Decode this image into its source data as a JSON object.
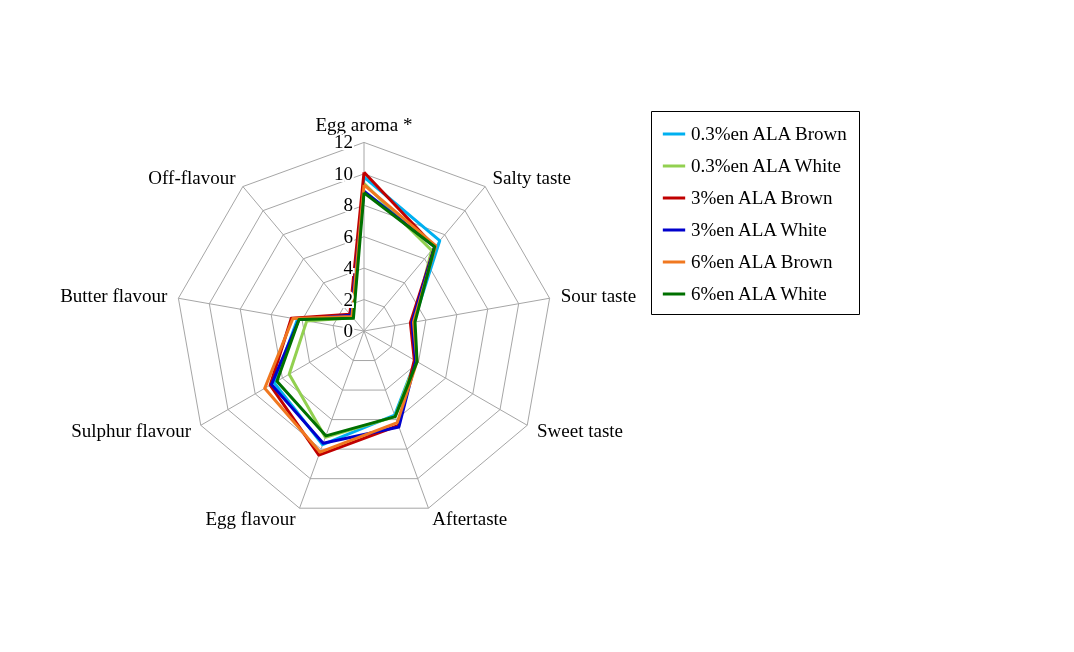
{
  "chart_data": {
    "type": "radar",
    "categories": [
      "Egg aroma *",
      "Salty taste",
      "Sour taste",
      "Sweet taste",
      "Aftertaste",
      "Egg flavour",
      "Sulphur flavour",
      "Butter flavour",
      "Off-flavour"
    ],
    "ylim": [
      0,
      12
    ],
    "yticks": [
      0,
      2,
      4,
      6,
      8,
      10,
      12
    ],
    "grid": true,
    "legend": "top right",
    "series": [
      {
        "name": "0.3%en ALA Brown",
        "color": "#00b0f0",
        "values": [
          9.8,
          7.5,
          3.2,
          3.8,
          5.7,
          7.7,
          6.6,
          4.3,
          1.2
        ]
      },
      {
        "name": "0.3%en ALA White",
        "color": "#92d050",
        "values": [
          9.4,
          6.7,
          3.2,
          3.8,
          5.8,
          7.2,
          5.5,
          3.7,
          1.1
        ]
      },
      {
        "name": "3%en ALA Brown",
        "color": "#c00000",
        "values": [
          10.1,
          7.0,
          3.0,
          3.7,
          6.4,
          8.4,
          6.9,
          4.7,
          1.4
        ]
      },
      {
        "name": "3%en ALA White",
        "color": "#0000cc",
        "values": [
          8.9,
          7.0,
          3.1,
          3.8,
          6.5,
          7.6,
          6.8,
          4.2,
          1.3
        ]
      },
      {
        "name": "6%en ALA Brown",
        "color": "#f07820",
        "values": [
          9.3,
          7.1,
          3.2,
          3.9,
          6.2,
          8.2,
          7.3,
          4.6,
          1.2
        ]
      },
      {
        "name": "6%en ALA White",
        "color": "#007000",
        "values": [
          8.8,
          7.0,
          3.3,
          3.9,
          5.8,
          7.1,
          6.4,
          4.2,
          1.05
        ]
      }
    ]
  }
}
